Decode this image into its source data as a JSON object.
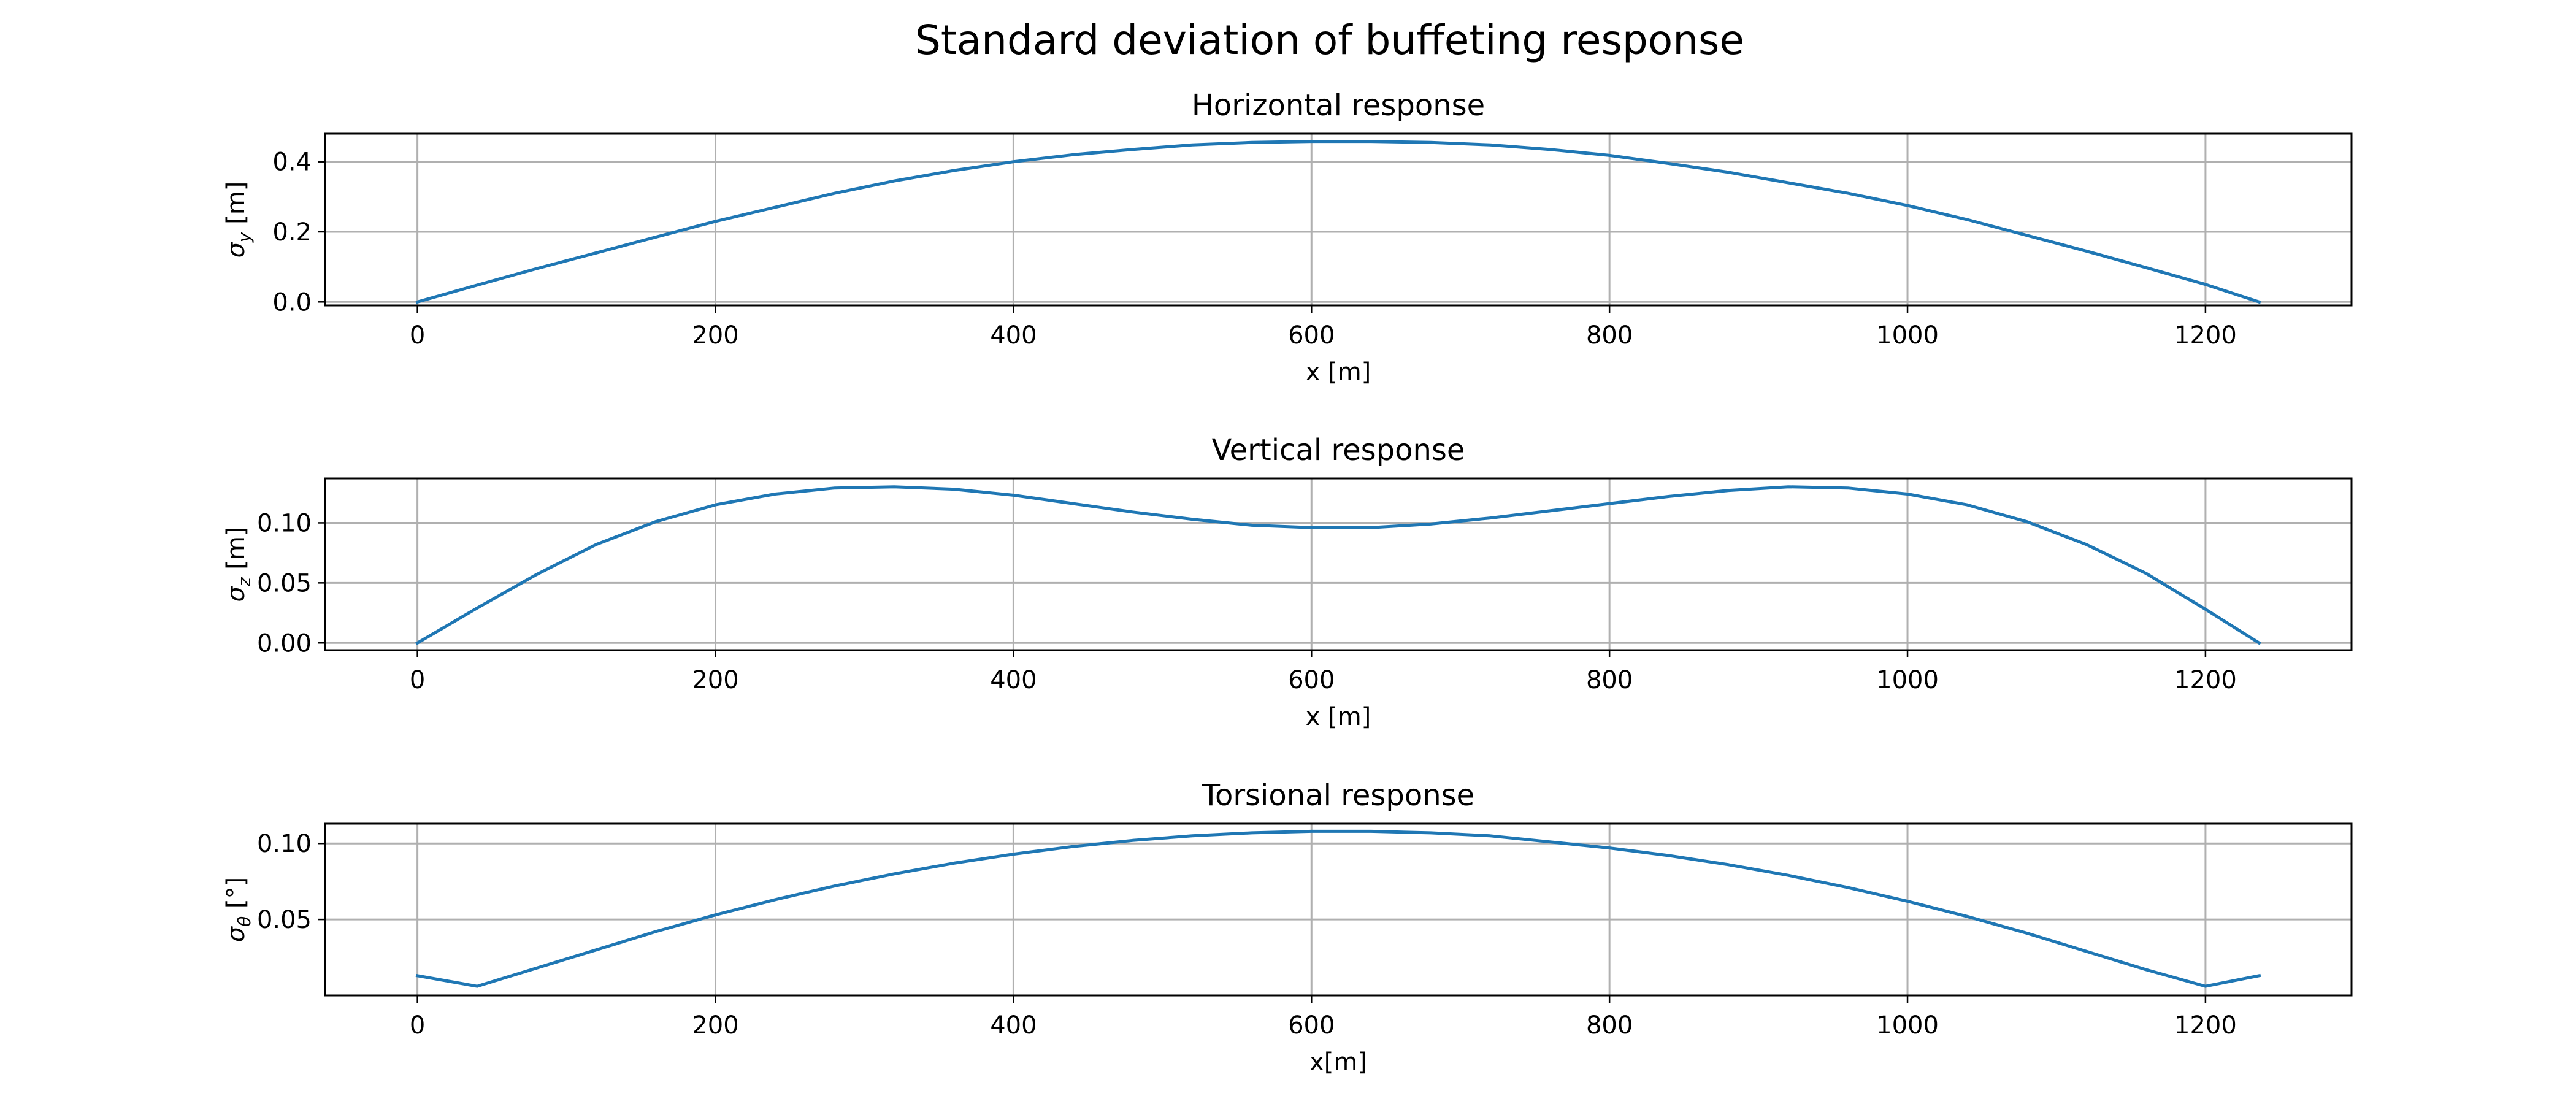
{
  "figure": {
    "suptitle": "Standard deviation of buffeting response"
  },
  "chart_data": [
    {
      "type": "line",
      "title": "Horizontal response",
      "xlabel": "x [m]",
      "ylabel": "σ_y [m]",
      "ylabel_main": "σ",
      "ylabel_sub": "y",
      "ylabel_unit": " [m]",
      "xlim": [
        -62,
        1298
      ],
      "ylim": [
        -0.01,
        0.48
      ],
      "xticks": [
        0,
        200,
        400,
        600,
        800,
        1000,
        1200
      ],
      "xtick_labels": [
        "0",
        "200",
        "400",
        "600",
        "800",
        "1000",
        "1200"
      ],
      "yticks": [
        0.0,
        0.2,
        0.4
      ],
      "ytick_labels": [
        "0.0",
        "0.2",
        "0.4"
      ],
      "grid": true,
      "color": "#1f77b4",
      "x": [
        0,
        40,
        80,
        120,
        160,
        200,
        240,
        280,
        320,
        360,
        400,
        440,
        480,
        520,
        560,
        600,
        640,
        680,
        720,
        760,
        800,
        840,
        880,
        920,
        960,
        1000,
        1040,
        1080,
        1120,
        1160,
        1200,
        1236
      ],
      "y": [
        0.0,
        0.048,
        0.095,
        0.14,
        0.185,
        0.23,
        0.27,
        0.31,
        0.345,
        0.375,
        0.4,
        0.42,
        0.435,
        0.448,
        0.455,
        0.458,
        0.458,
        0.455,
        0.448,
        0.435,
        0.418,
        0.395,
        0.37,
        0.34,
        0.31,
        0.275,
        0.235,
        0.19,
        0.145,
        0.098,
        0.05,
        0.0
      ]
    },
    {
      "type": "line",
      "title": "Vertical response",
      "xlabel": "x [m]",
      "ylabel": "σ_z [m]",
      "ylabel_main": "σ",
      "ylabel_sub": "z",
      "ylabel_unit": " [m]",
      "xlim": [
        -62,
        1298
      ],
      "ylim": [
        -0.006,
        0.137
      ],
      "xticks": [
        0,
        200,
        400,
        600,
        800,
        1000,
        1200
      ],
      "xtick_labels": [
        "0",
        "200",
        "400",
        "600",
        "800",
        "1000",
        "1200"
      ],
      "yticks": [
        0.0,
        0.05,
        0.1
      ],
      "ytick_labels": [
        "0.00",
        "0.05",
        "0.10"
      ],
      "grid": true,
      "color": "#1f77b4",
      "x": [
        0,
        40,
        80,
        120,
        160,
        200,
        240,
        280,
        320,
        360,
        400,
        440,
        480,
        520,
        560,
        600,
        640,
        680,
        720,
        760,
        800,
        840,
        880,
        920,
        960,
        1000,
        1040,
        1080,
        1120,
        1160,
        1200,
        1236
      ],
      "y": [
        0.0,
        0.029,
        0.057,
        0.082,
        0.101,
        0.115,
        0.124,
        0.129,
        0.13,
        0.128,
        0.123,
        0.116,
        0.109,
        0.103,
        0.098,
        0.096,
        0.096,
        0.099,
        0.104,
        0.11,
        0.116,
        0.122,
        0.127,
        0.13,
        0.129,
        0.124,
        0.115,
        0.101,
        0.082,
        0.058,
        0.028,
        0.0
      ]
    },
    {
      "type": "line",
      "title": "Torsional response",
      "xlabel": "x[m]",
      "ylabel": "σ_θ [°]",
      "ylabel_main": "σ",
      "ylabel_sub": "θ",
      "ylabel_unit": " [°]",
      "xlim": [
        -62,
        1298
      ],
      "ylim": [
        0.0,
        0.113
      ],
      "xticks": [
        0,
        200,
        400,
        600,
        800,
        1000,
        1200
      ],
      "xtick_labels": [
        "0",
        "200",
        "400",
        "600",
        "800",
        "1000",
        "1200"
      ],
      "yticks": [
        0.05,
        0.1
      ],
      "ytick_labels": [
        "0.05",
        "0.10"
      ],
      "grid": true,
      "color": "#1f77b4",
      "x": [
        0,
        40,
        80,
        120,
        160,
        200,
        240,
        280,
        320,
        360,
        400,
        440,
        480,
        520,
        560,
        600,
        640,
        680,
        720,
        760,
        800,
        840,
        880,
        920,
        960,
        1000,
        1040,
        1080,
        1120,
        1160,
        1200,
        1236
      ],
      "y": [
        0.013,
        0.006,
        0.018,
        0.03,
        0.042,
        0.053,
        0.063,
        0.072,
        0.08,
        0.087,
        0.093,
        0.098,
        0.102,
        0.105,
        0.107,
        0.108,
        0.108,
        0.107,
        0.105,
        0.101,
        0.097,
        0.092,
        0.086,
        0.079,
        0.071,
        0.062,
        0.052,
        0.041,
        0.029,
        0.017,
        0.006,
        0.013
      ]
    }
  ]
}
